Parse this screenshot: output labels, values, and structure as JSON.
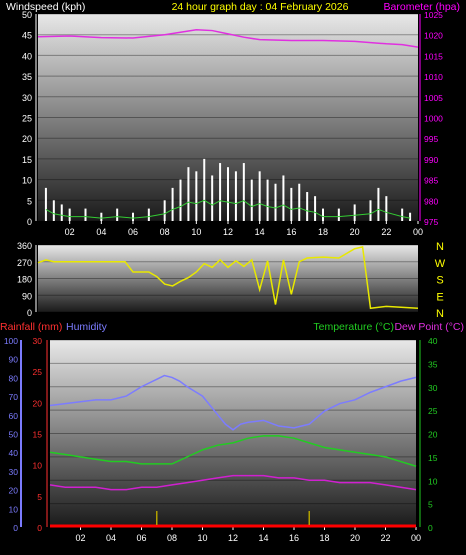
{
  "header": {
    "left": "Windspeed (kph)",
    "center": "24 hour graph day : 04 February 2026",
    "right": "Barometer (hpa)"
  },
  "wind_panel": {
    "y_ticks": [
      "0",
      "5",
      "10",
      "15",
      "20",
      "25",
      "30",
      "35",
      "40",
      "45",
      "50"
    ],
    "baro_ticks": [
      "975",
      "980",
      "985",
      "990",
      "995",
      "1000",
      "1005",
      "1010",
      "1015",
      "1020",
      "1025"
    ]
  },
  "dir_panel": {
    "y_ticks": [
      "0",
      "90",
      "180",
      "270",
      "360"
    ],
    "compass": [
      "N",
      "W",
      "S",
      "E",
      "N"
    ]
  },
  "bottom_panel": {
    "title_rain": "Rainfall (mm)",
    "title_humidity": "Humidity",
    "title_temp": "Temperature (°C)",
    "title_dew": "Dew Point (°C)",
    "humidity_ticks": [
      "0",
      "10",
      "20",
      "30",
      "40",
      "50",
      "60",
      "70",
      "80",
      "90",
      "100"
    ],
    "rain_ticks": [
      "0",
      "5",
      "10",
      "15",
      "20",
      "25",
      "30"
    ],
    "temp_ticks": [
      "0",
      "5",
      "10",
      "15",
      "20",
      "25",
      "30",
      "35",
      "40"
    ]
  },
  "x_ticks": [
    "02",
    "04",
    "06",
    "08",
    "10",
    "12",
    "14",
    "16",
    "18",
    "20",
    "22",
    "00"
  ],
  "colors": {
    "windspeed": "#ffffff",
    "gust": "#33cc33",
    "barometer": "#e030e0",
    "direction": "#e8e800",
    "humidity": "#7c7cff",
    "temperature": "#22cc22",
    "dewpoint": "#d020d0",
    "rainfall": "#ff0000",
    "rain_rate": "#b0a000"
  },
  "chart_data": [
    {
      "type": "line",
      "title": "24 hour graph day : 04 February 2026",
      "x_range_hours": [
        0,
        24
      ],
      "ylim_left": [
        0,
        50
      ],
      "ylim_right": [
        975,
        1025
      ],
      "series": [
        {
          "name": "Windspeed (kph)",
          "axis": "left",
          "x": [
            0.5,
            1,
            1.5,
            2,
            3,
            4,
            5,
            6,
            7,
            8,
            8.5,
            9,
            9.5,
            10,
            10.5,
            11,
            11.5,
            12,
            12.5,
            13,
            13.5,
            14,
            14.5,
            15,
            15.5,
            16,
            16.5,
            17,
            17.5,
            18,
            19,
            20,
            21,
            21.5,
            22,
            23,
            23.5
          ],
          "y": [
            8,
            5,
            4,
            3,
            3,
            2,
            3,
            2,
            3,
            5,
            8,
            10,
            13,
            12,
            15,
            11,
            14,
            13,
            12,
            14,
            10,
            12,
            10,
            9,
            11,
            8,
            9,
            7,
            6,
            3,
            3,
            4,
            5,
            8,
            6,
            3,
            2
          ]
        },
        {
          "name": "Barometer (hpa)",
          "axis": "right",
          "x": [
            0,
            2,
            4,
            6,
            8,
            10,
            11,
            12,
            13,
            14,
            16,
            18,
            20,
            22,
            23,
            24
          ],
          "y": [
            1019.5,
            1019.7,
            1019.3,
            1019.2,
            1020.0,
            1021.2,
            1021.0,
            1020.2,
            1019.4,
            1018.8,
            1018.6,
            1018.6,
            1018.4,
            1017.8,
            1017.6,
            1017.0
          ]
        }
      ]
    },
    {
      "type": "line",
      "title": "",
      "x_range_hours": [
        0,
        24
      ],
      "ylim": [
        0,
        360
      ],
      "series": [
        {
          "name": "Wind Direction",
          "x": [
            0,
            0.5,
            1,
            2,
            4,
            5.5,
            6,
            7,
            7.5,
            8,
            8.5,
            9,
            9.5,
            10,
            10.5,
            11,
            11.5,
            12,
            12.5,
            13,
            13.5,
            14,
            14.5,
            15,
            15.5,
            16,
            16.5,
            17,
            18,
            19,
            20,
            20.5,
            21,
            22,
            24
          ],
          "y": [
            265,
            280,
            270,
            270,
            270,
            270,
            215,
            215,
            190,
            150,
            140,
            165,
            185,
            215,
            260,
            240,
            280,
            240,
            275,
            245,
            280,
            120,
            275,
            40,
            280,
            95,
            270,
            290,
            295,
            290,
            340,
            350,
            20,
            30,
            20
          ]
        }
      ]
    },
    {
      "type": "line",
      "title": "",
      "x_range_hours": [
        0,
        24
      ],
      "ylim_humidity": [
        0,
        100
      ],
      "ylim_rain": [
        0,
        30
      ],
      "ylim_temp": [
        0,
        40
      ],
      "series": [
        {
          "name": "Humidity",
          "axis": "humidity",
          "x": [
            0,
            1,
            2,
            3,
            4,
            5,
            6,
            7,
            7.5,
            8,
            8.5,
            9,
            10,
            11,
            11.5,
            12,
            12.5,
            13,
            14,
            15,
            16,
            17,
            18,
            19,
            20,
            21,
            22,
            23,
            24
          ],
          "y": [
            65,
            66,
            67,
            68,
            68,
            70,
            75,
            79,
            81,
            80,
            78,
            75,
            70,
            60,
            55,
            52,
            55,
            56,
            57,
            54,
            53,
            55,
            62,
            66,
            68,
            72,
            75,
            78,
            80
          ]
        },
        {
          "name": "Temperature (°C)",
          "axis": "temp",
          "x": [
            0,
            1,
            2,
            3,
            4,
            5,
            6,
            7,
            8,
            9,
            10,
            11,
            12,
            13,
            14,
            15,
            16,
            17,
            18,
            19,
            20,
            21,
            22,
            23,
            24
          ],
          "y": [
            16,
            15.5,
            15,
            14.5,
            14,
            14,
            13.5,
            13.5,
            13.5,
            15,
            16.5,
            17.5,
            18,
            19,
            19.5,
            19.5,
            19,
            18,
            17,
            16.5,
            16,
            15.5,
            15,
            14,
            13
          ]
        },
        {
          "name": "Dew Point (°C)",
          "axis": "temp",
          "x": [
            0,
            1,
            2,
            3,
            4,
            5,
            6,
            7,
            8,
            9,
            10,
            11,
            12,
            13,
            14,
            15,
            16,
            17,
            18,
            19,
            20,
            21,
            22,
            23,
            24
          ],
          "y": [
            9,
            8.5,
            8.5,
            8.5,
            8,
            8,
            8.5,
            8.5,
            9,
            9.5,
            10,
            10.5,
            11,
            11,
            11,
            10.5,
            10.5,
            10,
            10,
            9.5,
            9.5,
            9.5,
            9,
            8.5,
            8
          ]
        },
        {
          "name": "Rainfall (mm)",
          "axis": "rain",
          "x": [
            0,
            24
          ],
          "y": [
            0,
            0
          ]
        }
      ]
    }
  ]
}
